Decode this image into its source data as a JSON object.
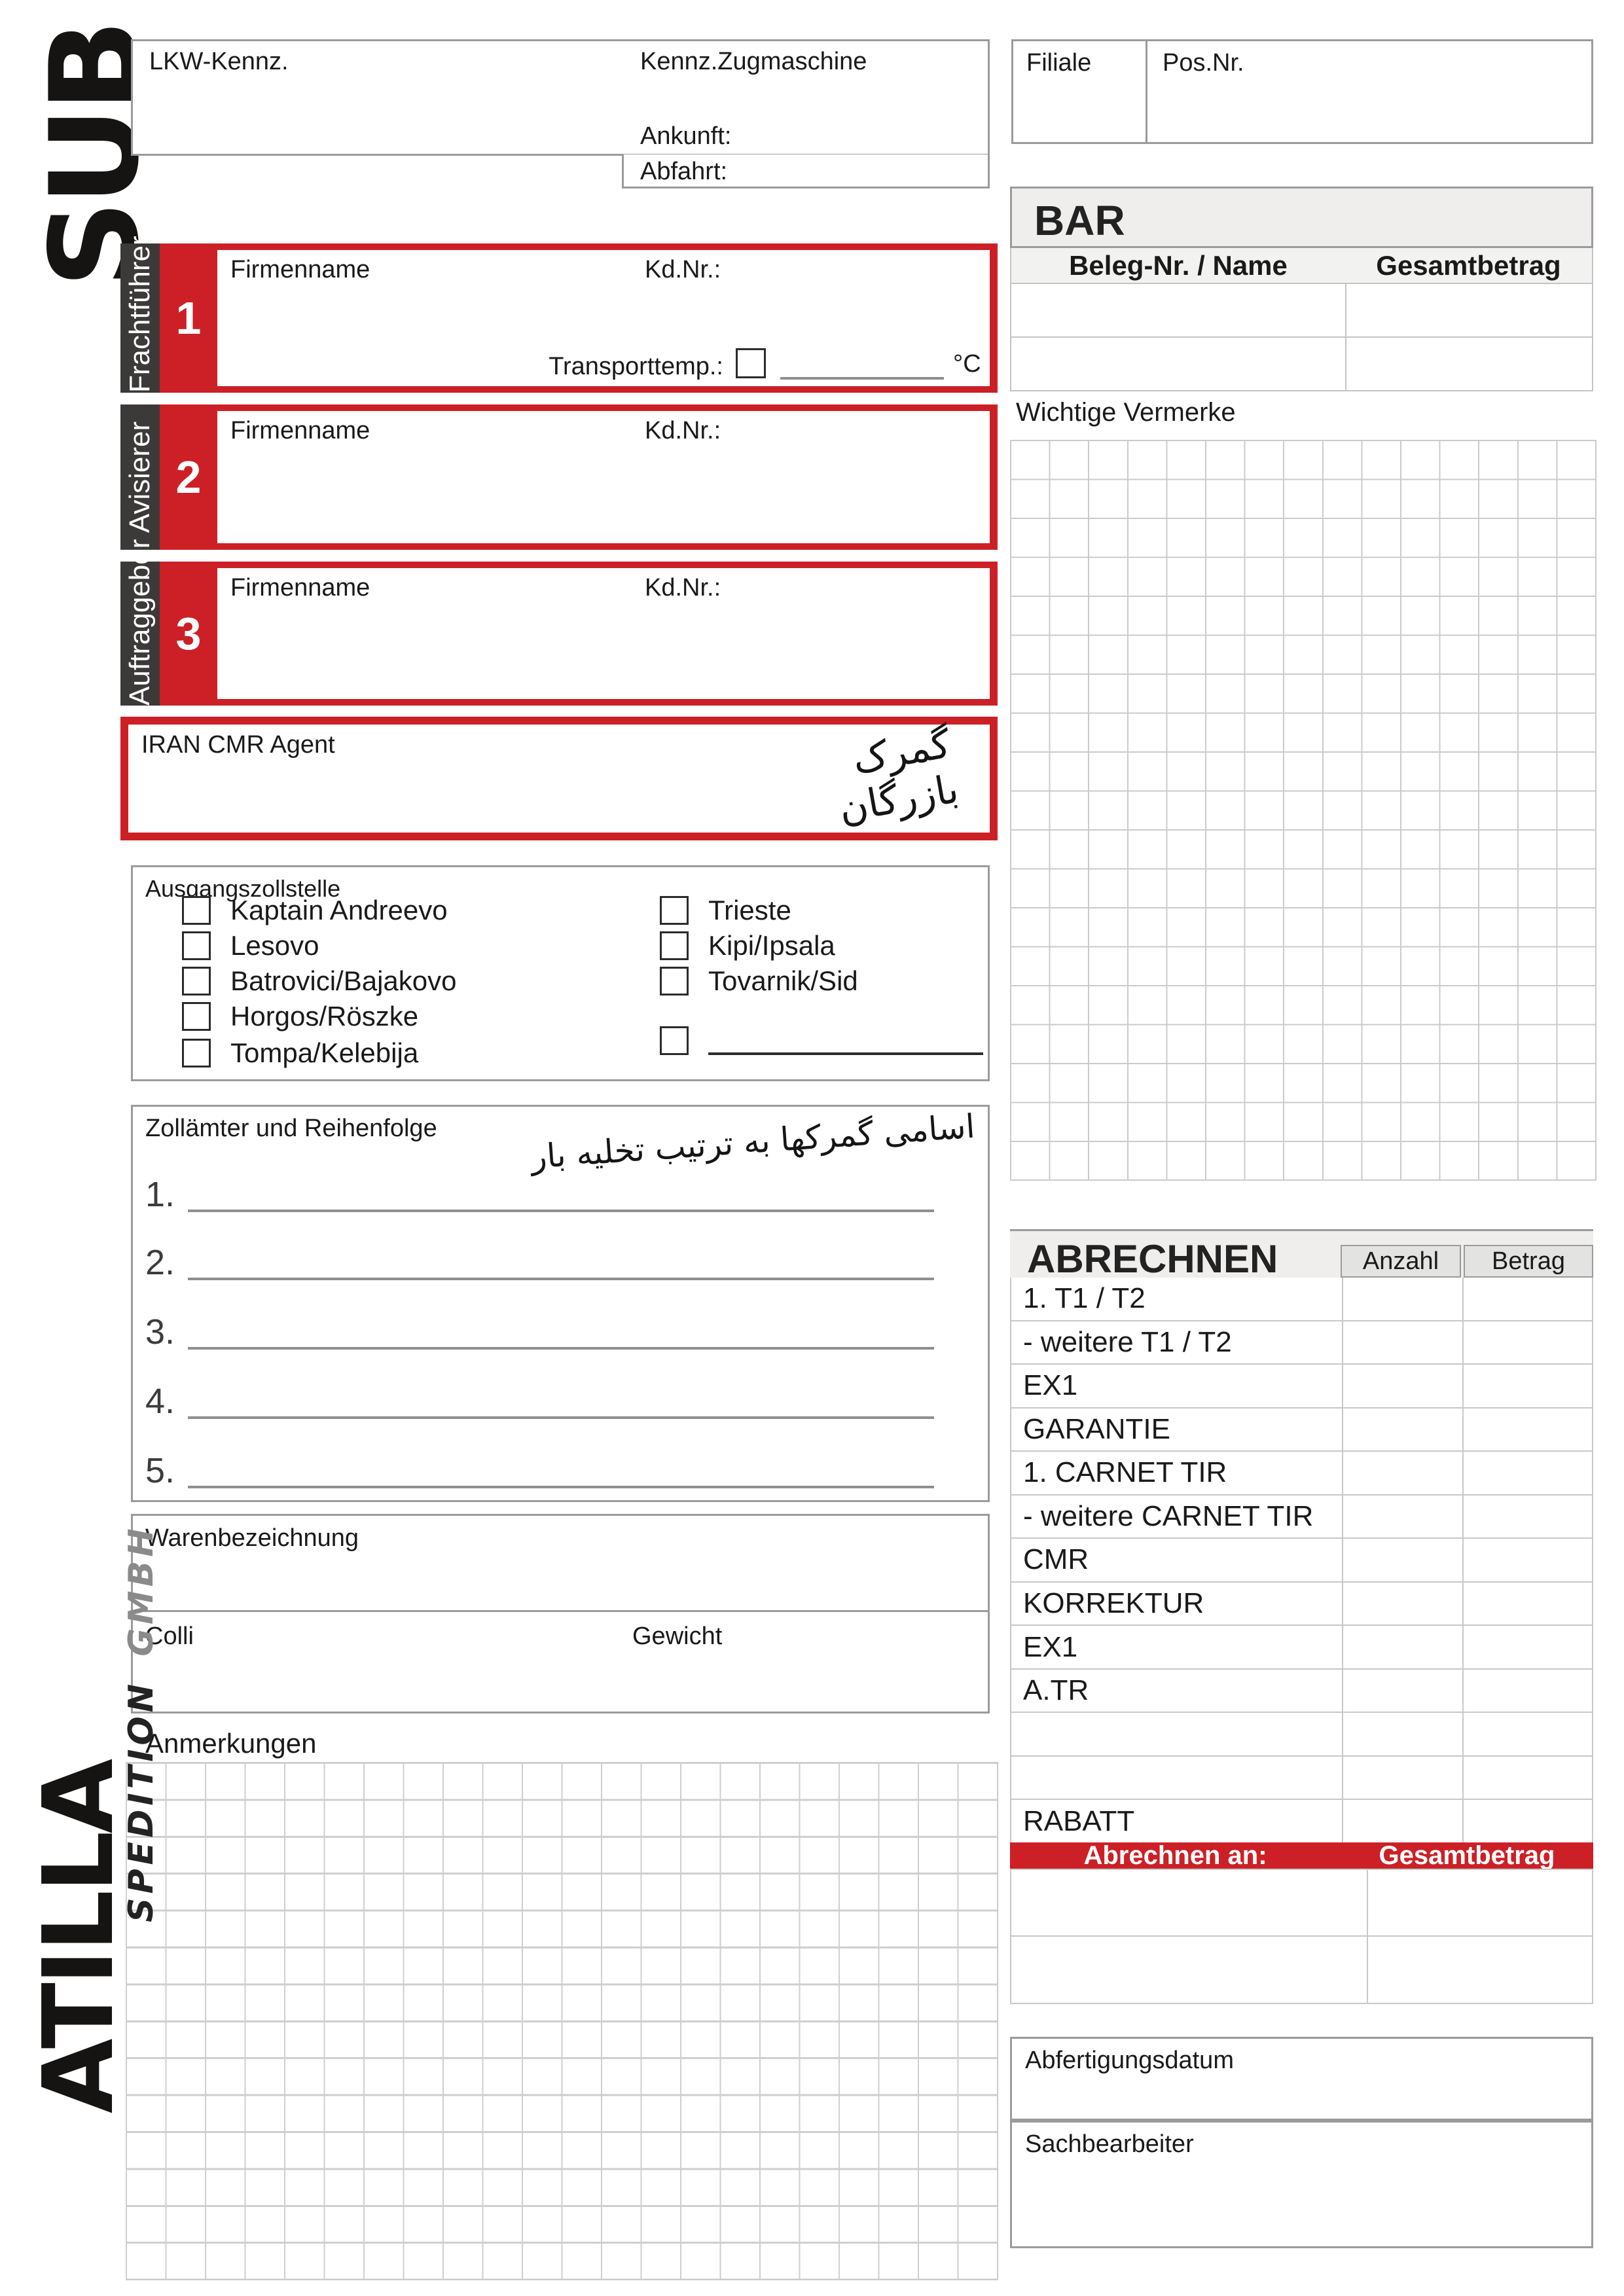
{
  "logo": {
    "sub": "SUB",
    "atilla": "ATILLA",
    "spedition": "SPEDITION",
    "gmbh": "GMBH"
  },
  "top": {
    "lkw": "LKW-Kennz.",
    "zugmaschine": "Kennz.Zugmaschine",
    "ankunft": "Ankunft:",
    "abfahrt": "Abfahrt:",
    "filiale": "Filiale",
    "posnr": "Pos.Nr."
  },
  "bar": {
    "title": "BAR",
    "col1": "Beleg-Nr. / Name",
    "col2": "Gesamtbetrag"
  },
  "vermerke": {
    "title": "Wichtige Vermerke"
  },
  "parties": [
    {
      "num": "1",
      "role": "Frachtführer",
      "firmenname": "Firmenname",
      "kdnr": "Kd.Nr.:",
      "transport": "Transporttemp.:",
      "unit": "°C"
    },
    {
      "num": "2",
      "role": "Avisierer",
      "firmenname": "Firmenname",
      "kdnr": "Kd.Nr.:"
    },
    {
      "num": "3",
      "role": "Auftraggeber",
      "firmenname": "Firmenname",
      "kdnr": "Kd.Nr.:"
    }
  ],
  "iran": {
    "label": "IRAN CMR Agent",
    "handwriting": "گمرک بازرگان"
  },
  "ausgangszollstelle": {
    "title": "Ausgangszollstelle",
    "left": [
      "Kaptain Andreevo",
      "Lesovo",
      "Batrovici/Bajakovo",
      "Horgos/Röszke",
      "Tompa/Kelebija"
    ],
    "right": [
      "Trieste",
      "Kipi/Ipsala",
      "Tovarnik/Sid"
    ]
  },
  "zollaemter": {
    "title": "Zollämter und Reihenfolge",
    "handwriting": "اسامی گمرکها به ترتیب تخلیه بار",
    "lines": [
      "1.",
      "2.",
      "3.",
      "4.",
      "5."
    ]
  },
  "waren": {
    "title": "Warenbezeichnung",
    "colli": "Colli",
    "gewicht": "Gewicht"
  },
  "anmerkungen": {
    "title": "Anmerkungen"
  },
  "abrechnen": {
    "title": "ABRECHNEN",
    "anzahl": "Anzahl",
    "betrag": "Betrag",
    "rows": [
      "1. T1 / T2",
      " - weitere T1 / T2",
      "EX1",
      "GARANTIE",
      "1. CARNET TIR",
      " - weitere CARNET TIR",
      "CMR",
      "KORREKTUR",
      "EX1",
      "A.TR",
      "",
      "",
      "RABATT"
    ],
    "footer": {
      "an": "Abrechnen an:",
      "gesamt": "Gesamtbetrag"
    }
  },
  "abfertigung": {
    "label": "Abfertigungsdatum"
  },
  "sachbearbeiter": {
    "label": "Sachbearbeiter"
  },
  "colors": {
    "red": "#cc2026",
    "dark": "#3b3a39",
    "border_gray": "#9b9b9b",
    "grid_gray": "#cbcbcb"
  }
}
